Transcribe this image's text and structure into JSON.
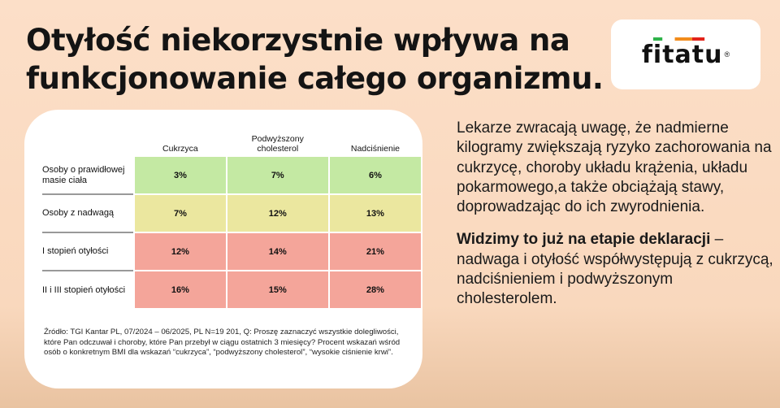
{
  "title": [
    "Otyłość niekorzystnie wpływa na",
    "funkcjonowanie całego organizmu."
  ],
  "logo": {
    "text": "fitatu",
    "mark": "®",
    "accent_colors": [
      "#2fb34a",
      "#f28c1c",
      "#e2231a"
    ]
  },
  "table": {
    "columns": [
      "Cukrzyca",
      "Podwyższony cholesterol",
      "Nadciśnienie"
    ],
    "rows": [
      {
        "label": "Osoby o prawidłowej masie ciała",
        "values": [
          "3%",
          "7%",
          "6%"
        ],
        "color": "#c4e9a3"
      },
      {
        "label": "Osoby z nadwagą",
        "values": [
          "7%",
          "12%",
          "13%"
        ],
        "color": "#ebe79f"
      },
      {
        "label": "I stopień otyłości",
        "values": [
          "12%",
          "14%",
          "21%"
        ],
        "color": "#f4a59a"
      },
      {
        "label": "II i III stopień otyłości",
        "values": [
          "16%",
          "15%",
          "28%"
        ],
        "color": "#f4a59a"
      }
    ]
  },
  "source": "Źródło: TGI Kantar PL, 07/2024 – 06/2025, PL N=19 201, Q: Proszę zaznaczyć wszystkie dolegliwości, które Pan odczuwał i choroby, które Pan przebył w ciągu ostatnich 3 miesięcy? Procent wskazań wśród osób o konkretnym BMI dla wskazań “cukrzyca”, “podwyższony cholesterol”, “wysokie ciśnienie krwi”.",
  "paragraph1": "Lekarze zwracają uwagę, że nadmierne kilogramy zwiększają ryzyko zachorowania na cukrzycę, choroby układu krążenia, układu pokarmowego,a także obciążają stawy, doprowadzając do ich zwyrodnienia.",
  "paragraph2_bold": "Widzimy to już na etapie deklaracji",
  "paragraph2_rest": " – nadwaga i otyłość współwystępują z cukrzycą, nadciśnieniem i podwyższonym cholesterolem."
}
